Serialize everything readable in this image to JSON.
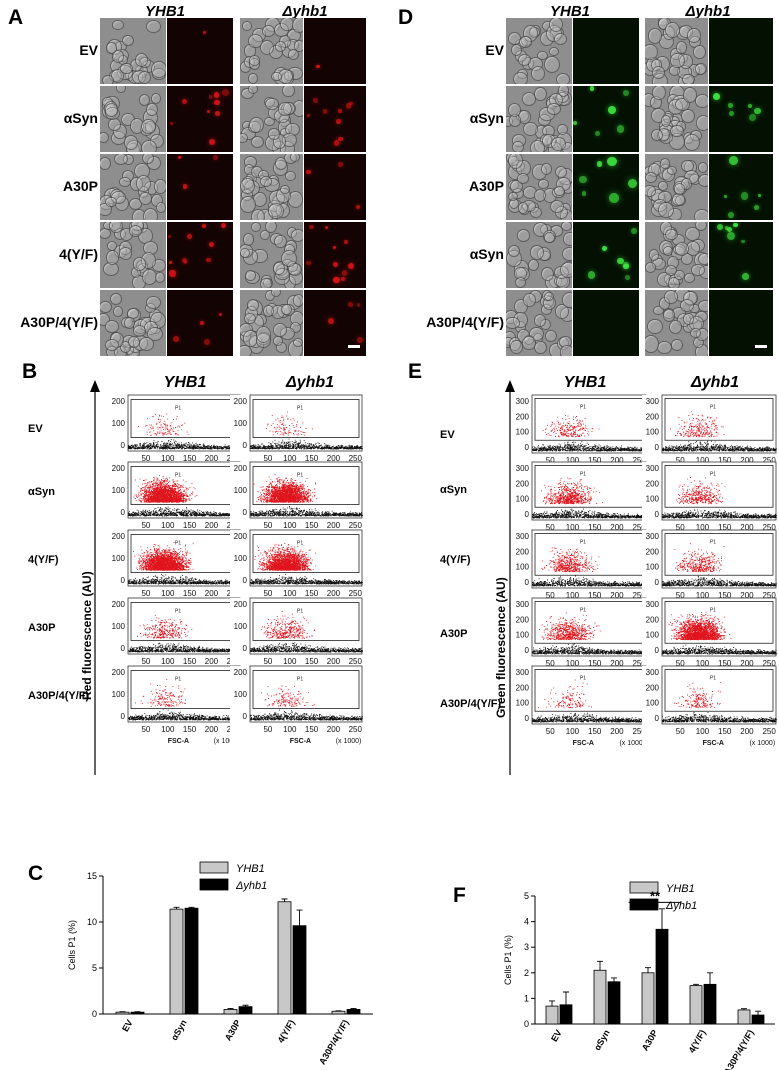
{
  "panel_letters": {
    "a": "A",
    "b": "B",
    "c": "C",
    "d": "D",
    "e": "E",
    "f": "F"
  },
  "strains": {
    "wt": "YHB1",
    "mut": "Δyhb1"
  },
  "panel_a": {
    "rows": [
      "EV",
      "αSyn",
      "A30P",
      "4(Y/F)",
      "A30P/4(Y/F)"
    ]
  },
  "panel_d": {
    "rows": [
      "EV",
      "αSyn",
      "A30P",
      "αSyn",
      "A30P/4(Y/F)"
    ]
  },
  "panel_b": {
    "rows": [
      "EV",
      "αSyn",
      "4(Y/F)",
      "A30P",
      "A30P/4(Y/F)"
    ],
    "y_title": "Red fluorescence (AU)",
    "x_label": "FSC-A",
    "x_unit": "(x 1000)",
    "x_ticks": [
      "50",
      "100",
      "150",
      "200",
      "250"
    ],
    "y_ticks": [
      "200",
      "100",
      "0"
    ],
    "gate": "P1"
  },
  "panel_e": {
    "rows": [
      "EV",
      "αSyn",
      "4(Y/F)",
      "A30P",
      "A30P/4(Y/F)"
    ],
    "y_title": "Green fluorescence (AU)",
    "x_label": "FSC-A",
    "x_unit": "(x 1000)",
    "x_ticks": [
      "50",
      "100",
      "150",
      "200",
      "250"
    ],
    "y_ticks": [
      "300",
      "200",
      "100",
      "0"
    ],
    "gate": "P1"
  },
  "chart_data": [
    {
      "type": "bar",
      "panel": "C",
      "ylabel": "Cells P1 (%)",
      "ylim": [
        0,
        15
      ],
      "yticks": [
        0,
        5,
        10,
        15
      ],
      "categories": [
        "EV",
        "αSyn",
        "A30P",
        "4(Y/F)",
        "A30P/4(Y/F)"
      ],
      "series": [
        {
          "name": "YHB1",
          "color": "#c8c8c8",
          "values": [
            0.2,
            11.4,
            0.5,
            12.2,
            0.3
          ],
          "errors": [
            0.05,
            0.2,
            0.1,
            0.3,
            0.05
          ]
        },
        {
          "name": "Δyhb1",
          "color": "#000000",
          "values": [
            0.2,
            11.5,
            0.8,
            9.6,
            0.5
          ],
          "errors": [
            0.05,
            0.1,
            0.15,
            1.7,
            0.1
          ]
        }
      ],
      "legend": "top-right"
    },
    {
      "type": "bar",
      "panel": "F",
      "ylabel": "Cells P1 (%)",
      "ylim": [
        0,
        5
      ],
      "yticks": [
        0,
        1,
        2,
        3,
        4,
        5
      ],
      "ytick_labels": [
        "0",
        "1",
        "2",
        "3",
        "4",
        "5"
      ],
      "categories": [
        "EV",
        "αSyn",
        "A30P",
        "4(Y/F)",
        "A30P/4(Y/F)"
      ],
      "series": [
        {
          "name": "YHB1",
          "color": "#c8c8c8",
          "values": [
            0.7,
            2.1,
            2.0,
            1.5,
            0.55
          ],
          "errors": [
            0.2,
            0.35,
            0.2,
            0.05,
            0.05
          ]
        },
        {
          "name": "Δyhb1",
          "color": "#000000",
          "values": [
            0.75,
            1.65,
            3.7,
            1.55,
            0.35
          ],
          "errors": [
            0.5,
            0.15,
            0.8,
            0.45,
            0.15
          ]
        }
      ],
      "annotation": "**",
      "legend": "top-right"
    }
  ]
}
